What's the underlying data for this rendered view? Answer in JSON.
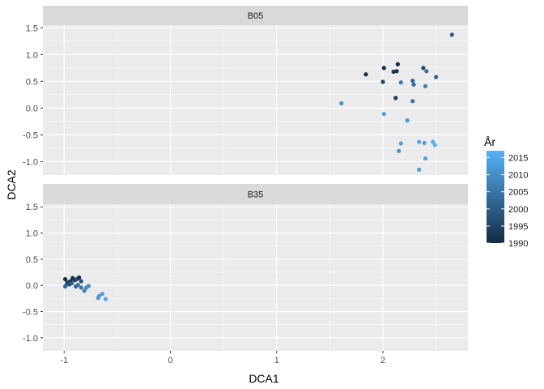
{
  "chart_data": {
    "type": "scatter",
    "xlabel": "DCA1",
    "ylabel": "DCA2",
    "xlim": [
      -1.2,
      2.8
    ],
    "ylim": [
      -1.25,
      1.55
    ],
    "xticks": [
      -1,
      0,
      1,
      2
    ],
    "xtick_labels": [
      "-1",
      "0",
      "1",
      "2"
    ],
    "yticks": [
      -1.0,
      -0.5,
      0.0,
      0.5,
      1.0,
      1.5
    ],
    "ytick_labels": [
      "-1.0",
      "-0.5",
      "0.0",
      "0.5",
      "1.0",
      "1.5"
    ],
    "grid": true,
    "facet_by": "site",
    "color_by": "year",
    "legend": {
      "title": "År",
      "position": "right",
      "breaks": [
        2015,
        2010,
        2005,
        2000,
        1995,
        1990
      ],
      "labels": [
        "2015",
        "2010",
        "2005",
        "2000",
        "1995",
        "1990"
      ],
      "range": [
        1990,
        2017
      ],
      "color_low": "#132b43",
      "color_high": "#56b1f7"
    },
    "panels": [
      {
        "strip": "B05",
        "points": [
          {
            "x": 2.65,
            "y": 1.37,
            "year": 2000
          },
          {
            "x": 1.84,
            "y": 0.63,
            "year": 1991
          },
          {
            "x": 2.01,
            "y": 0.75,
            "year": 1990
          },
          {
            "x": 2.1,
            "y": 0.68,
            "year": 1992
          },
          {
            "x": 2.13,
            "y": 0.69,
            "year": 1991
          },
          {
            "x": 2.14,
            "y": 0.82,
            "year": 1990
          },
          {
            "x": 2.38,
            "y": 0.75,
            "year": 1996
          },
          {
            "x": 2.41,
            "y": 0.69,
            "year": 2004
          },
          {
            "x": 2.0,
            "y": 0.49,
            "year": 1995
          },
          {
            "x": 2.17,
            "y": 0.48,
            "year": 2006
          },
          {
            "x": 2.28,
            "y": 0.51,
            "year": 2002
          },
          {
            "x": 2.29,
            "y": 0.44,
            "year": 2003
          },
          {
            "x": 2.4,
            "y": 0.41,
            "year": 2007
          },
          {
            "x": 2.5,
            "y": 0.58,
            "year": 2001
          },
          {
            "x": 2.12,
            "y": 0.19,
            "year": 1993
          },
          {
            "x": 2.28,
            "y": 0.13,
            "year": 2005
          },
          {
            "x": 1.61,
            "y": 0.09,
            "year": 2011
          },
          {
            "x": 2.01,
            "y": -0.11,
            "year": 2013
          },
          {
            "x": 2.23,
            "y": -0.23,
            "year": 2012
          },
          {
            "x": 2.17,
            "y": -0.66,
            "year": 2013
          },
          {
            "x": 2.15,
            "y": -0.8,
            "year": 2011
          },
          {
            "x": 2.34,
            "y": -0.63,
            "year": 2015
          },
          {
            "x": 2.39,
            "y": -0.65,
            "year": 2014
          },
          {
            "x": 2.47,
            "y": -0.63,
            "year": 2016
          },
          {
            "x": 2.49,
            "y": -0.69,
            "year": 2017
          },
          {
            "x": 2.4,
            "y": -0.94,
            "year": 2014
          },
          {
            "x": 2.34,
            "y": -1.15,
            "year": 2013
          }
        ]
      },
      {
        "strip": "B35",
        "points": [
          {
            "x": -0.99,
            "y": 0.12,
            "year": 1990
          },
          {
            "x": -0.97,
            "y": 0.06,
            "year": 1993
          },
          {
            "x": -0.94,
            "y": 0.08,
            "year": 1991
          },
          {
            "x": -0.92,
            "y": 0.14,
            "year": 1991
          },
          {
            "x": -0.9,
            "y": 0.1,
            "year": 1994
          },
          {
            "x": -0.88,
            "y": 0.12,
            "year": 1996
          },
          {
            "x": -0.86,
            "y": 0.15,
            "year": 1990
          },
          {
            "x": -0.84,
            "y": 0.08,
            "year": 1998
          },
          {
            "x": -0.98,
            "y": 0.01,
            "year": 2001
          },
          {
            "x": -0.99,
            "y": -0.02,
            "year": 2003
          },
          {
            "x": -0.95,
            "y": 0.02,
            "year": 1997
          },
          {
            "x": -0.93,
            "y": 0.04,
            "year": 2000
          },
          {
            "x": -0.89,
            "y": -0.02,
            "year": 2002
          },
          {
            "x": -0.87,
            "y": 0.01,
            "year": 2004
          },
          {
            "x": -0.84,
            "y": -0.04,
            "year": 2005
          },
          {
            "x": -0.81,
            "y": -0.1,
            "year": 2007
          },
          {
            "x": -0.79,
            "y": -0.04,
            "year": 2009
          },
          {
            "x": -0.77,
            "y": -0.01,
            "year": 2010
          },
          {
            "x": -0.68,
            "y": -0.24,
            "year": 2013
          },
          {
            "x": -0.67,
            "y": -0.2,
            "year": 2012
          },
          {
            "x": -0.64,
            "y": -0.16,
            "year": 2014
          },
          {
            "x": -0.61,
            "y": -0.26,
            "year": 2015
          }
        ]
      }
    ]
  }
}
